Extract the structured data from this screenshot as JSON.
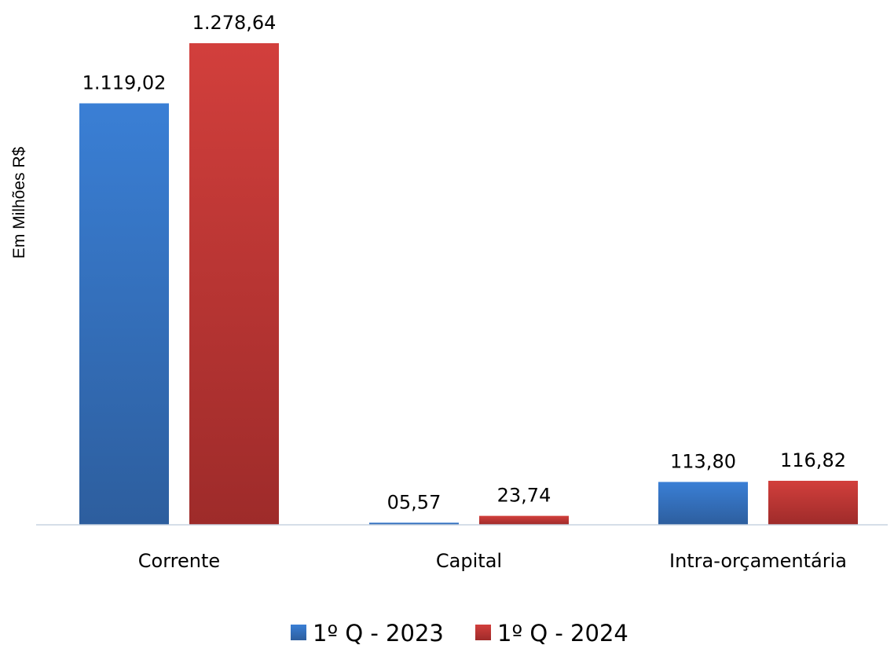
{
  "chart_data": {
    "type": "bar",
    "title": "",
    "xlabel": "",
    "ylabel": "Em Milhões R$",
    "categories": [
      "Corrente",
      "Capital",
      "Intra-orçamentária"
    ],
    "series": [
      {
        "name": "1º Q - 2023",
        "values": [
          1119.02,
          5.57,
          113.8
        ],
        "labels": [
          "1.119,02",
          "05,57",
          "113,80"
        ],
        "color": "#3A78C9"
      },
      {
        "name": "1º Q - 2024",
        "values": [
          1278.64,
          23.74,
          116.82
        ],
        "labels": [
          "1.278,64",
          "23,74",
          "116,82"
        ],
        "color": "#C73A38"
      }
    ],
    "ylim": [
      0,
      1300
    ],
    "grid": false,
    "legend_position": "bottom"
  }
}
